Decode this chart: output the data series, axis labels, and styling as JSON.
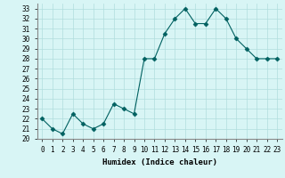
{
  "xlabel": "Humidex (Indice chaleur)",
  "ylabel": "",
  "x_values": [
    0,
    1,
    2,
    3,
    4,
    5,
    6,
    7,
    8,
    9,
    10,
    11,
    12,
    13,
    14,
    15,
    16,
    17,
    18,
    19,
    20,
    21,
    22,
    23
  ],
  "y_values": [
    22,
    21,
    20.5,
    22.5,
    21.5,
    21,
    21.5,
    23.5,
    23,
    22.5,
    28,
    28,
    30.5,
    32,
    33,
    31.5,
    31.5,
    33,
    32,
    30,
    29,
    28,
    28,
    28
  ],
  "ylim": [
    20,
    33.5
  ],
  "yticks": [
    20,
    21,
    22,
    23,
    24,
    25,
    26,
    27,
    28,
    29,
    30,
    31,
    32,
    33
  ],
  "line_color": "#006060",
  "marker": "D",
  "marker_size": 2.5,
  "background_color": "#d8f5f5",
  "grid_color": "#b0dede",
  "label_fontsize": 6.5,
  "tick_fontsize": 5.5
}
